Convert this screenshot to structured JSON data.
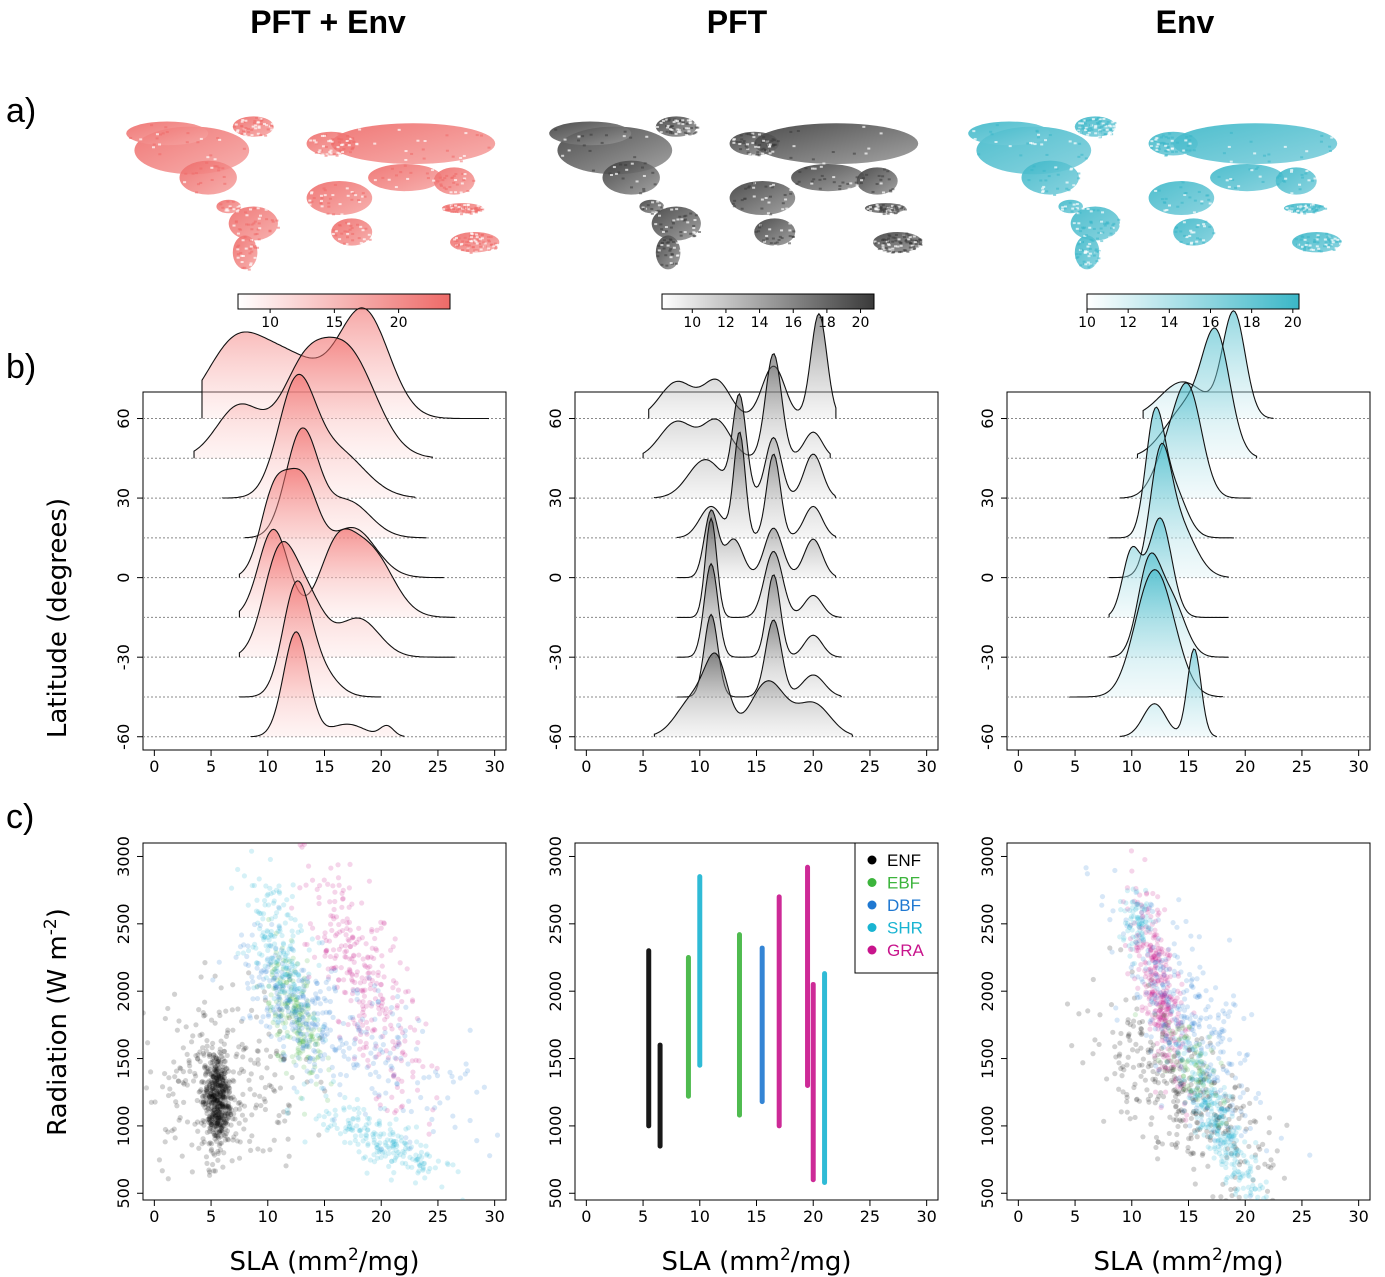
{
  "columns": [
    {
      "title": "PFT + Env",
      "color": "#f0605e",
      "light": "#fde2e1",
      "mapBase": "#f6a8a6",
      "mapDark": "#ee6a68"
    },
    {
      "title": "PFT",
      "color": "#444444",
      "light": "#e4e4e4",
      "mapBase": "#9a9a9a",
      "mapDark": "#3a3a3a"
    },
    {
      "title": "Env",
      "color": "#3bb7c8",
      "light": "#dcf1f4",
      "mapBase": "#7fcfdc",
      "mapDark": "#3bb7c8"
    }
  ],
  "panel_labels": [
    "a)",
    "b)",
    "c)"
  ],
  "chart_data": [
    {
      "type": "heatmap",
      "panel": "a",
      "column": "PFT + Env",
      "description_ticks": [
        "10",
        "15",
        "20"
      ],
      "colorbar_range": [
        7.5,
        24
      ]
    },
    {
      "type": "heatmap",
      "panel": "a",
      "column": "PFT",
      "description_ticks": [
        "10",
        "12",
        "14",
        "16",
        "18",
        "20"
      ],
      "colorbar_range": [
        8.2,
        20.8
      ]
    },
    {
      "type": "heatmap",
      "panel": "a",
      "column": "Env",
      "description_ticks": [
        "10",
        "12",
        "14",
        "16",
        "18",
        "20"
      ],
      "colorbar_range": [
        10,
        20.3
      ]
    },
    {
      "type": "area",
      "panel": "b",
      "ylabel": "Latitude (degrees)",
      "xlabel": "",
      "xlim": [
        -1,
        31
      ],
      "ylim": [
        -65,
        70
      ],
      "xticks": [
        "0",
        "5",
        "10",
        "15",
        "20",
        "25",
        "30"
      ],
      "yticks": [
        "-60",
        "-30",
        "0",
        "30",
        "60"
      ],
      "baselines": [
        60,
        45,
        30,
        15,
        0,
        -15,
        -30,
        -45,
        -60
      ],
      "ridges": {
        "PFT + Env": [
          {
            "lat": 60,
            "peaks": [
              [
                7,
                0.65,
                2.5
              ],
              [
                12,
                0.55,
                3
              ],
              [
                18.5,
                1,
                2.2
              ]
            ],
            "xmin": 4.2,
            "xmax": 29.5
          },
          {
            "lat": 45,
            "peaks": [
              [
                7.5,
                0.5,
                2
              ],
              [
                13,
                0.7,
                2
              ],
              [
                17,
                1,
                2.5
              ]
            ],
            "xmin": 3.5,
            "xmax": 24.5
          },
          {
            "lat": 30,
            "peaks": [
              [
                12.5,
                1,
                1.6
              ],
              [
                16,
                0.45,
                2.5
              ]
            ],
            "xmin": 6,
            "xmax": 23
          },
          {
            "lat": 15,
            "peaks": [
              [
                13,
                1,
                1.4
              ],
              [
                17,
                0.35,
                2
              ]
            ],
            "xmin": 8,
            "xmax": 24
          },
          {
            "lat": 0,
            "peaks": [
              [
                10.5,
                0.7,
                1.2
              ],
              [
                13,
                0.85,
                1.4
              ],
              [
                17.5,
                0.45,
                2
              ]
            ],
            "xmin": 7.5,
            "xmax": 25.5
          },
          {
            "lat": -15,
            "peaks": [
              [
                10.5,
                0.8,
                1.3
              ],
              [
                16,
                0.55,
                1.5
              ],
              [
                19,
                0.6,
                2
              ]
            ],
            "xmin": 7.5,
            "xmax": 26.5
          },
          {
            "lat": -30,
            "peaks": [
              [
                11,
                0.9,
                1.4
              ],
              [
                13.5,
                0.5,
                1.5
              ],
              [
                18,
                0.35,
                1.8
              ]
            ],
            "xmin": 7.5,
            "xmax": 26.5
          },
          {
            "lat": -45,
            "peaks": [
              [
                12.5,
                1,
                1.2
              ],
              [
                14.5,
                0.25,
                1.5
              ]
            ],
            "xmin": 7.5,
            "xmax": 20
          },
          {
            "lat": -60,
            "peaks": [
              [
                12.5,
                1,
                1.1
              ],
              [
                17,
                0.12,
                1.5
              ],
              [
                20.5,
                0.1,
                0.6
              ]
            ],
            "xmin": 8.5,
            "xmax": 22
          }
        ],
        "PFT": [
          {
            "lat": 60,
            "peaks": [
              [
                8,
                0.35,
                1.5
              ],
              [
                11.5,
                0.35,
                1.2
              ],
              [
                16.5,
                0.5,
                1
              ],
              [
                20.5,
                1,
                0.7
              ]
            ],
            "xmin": 5.5,
            "xmax": 22
          },
          {
            "lat": 45,
            "peaks": [
              [
                8,
                0.35,
                1.5
              ],
              [
                11.5,
                0.35,
                1.2
              ],
              [
                16.5,
                1,
                0.7
              ],
              [
                20,
                0.25,
                0.8
              ]
            ],
            "xmin": 5,
            "xmax": 21.5
          },
          {
            "lat": 30,
            "peaks": [
              [
                10.5,
                0.35,
                1.5
              ],
              [
                13.5,
                0.9,
                0.6
              ],
              [
                16.5,
                0.55,
                0.7
              ],
              [
                20,
                0.4,
                0.8
              ]
            ],
            "xmin": 6,
            "xmax": 22
          },
          {
            "lat": 15,
            "peaks": [
              [
                11,
                0.3,
                1
              ],
              [
                13.5,
                1,
                0.5
              ],
              [
                16.5,
                0.8,
                0.6
              ],
              [
                20,
                0.3,
                0.8
              ]
            ],
            "xmin": 8,
            "xmax": 22
          },
          {
            "lat": 0,
            "peaks": [
              [
                11,
                0.6,
                0.6
              ],
              [
                13,
                0.35,
                0.8
              ],
              [
                16.5,
                0.45,
                0.8
              ],
              [
                20,
                0.35,
                0.8
              ]
            ],
            "xmin": 8,
            "xmax": 22
          },
          {
            "lat": -15,
            "peaks": [
              [
                11,
                0.9,
                0.5
              ],
              [
                16.5,
                0.6,
                0.8
              ],
              [
                20,
                0.2,
                0.8
              ]
            ],
            "xmin": 8,
            "xmax": 22.5
          },
          {
            "lat": -30,
            "peaks": [
              [
                11,
                0.85,
                0.6
              ],
              [
                16.5,
                0.75,
                0.6
              ],
              [
                20,
                0.2,
                0.8
              ]
            ],
            "xmin": 8,
            "xmax": 22.5
          },
          {
            "lat": -45,
            "peaks": [
              [
                11,
                0.75,
                0.6
              ],
              [
                16.5,
                0.7,
                0.7
              ],
              [
                20,
                0.2,
                1
              ]
            ],
            "xmin": 8,
            "xmax": 22.5
          },
          {
            "lat": -60,
            "peaks": [
              [
                9.5,
                0.35,
                1.5
              ],
              [
                11.5,
                0.6,
                1
              ],
              [
                16,
                0.5,
                1.5
              ],
              [
                20,
                0.3,
                1.5
              ]
            ],
            "xmin": 6,
            "xmax": 23.5
          }
        ],
        "Env": [
          {
            "lat": 60,
            "peaks": [
              [
                14.5,
                0.35,
                2
              ],
              [
                19,
                1,
                1
              ]
            ],
            "xmin": 11,
            "xmax": 22.5
          },
          {
            "lat": 45,
            "peaks": [
              [
                15,
                0.5,
                2
              ],
              [
                17.5,
                1,
                1.2
              ]
            ],
            "xmin": 10.5,
            "xmax": 21
          },
          {
            "lat": 30,
            "peaks": [
              [
                13,
                0.35,
                1.2
              ],
              [
                15,
                1,
                1.2
              ]
            ],
            "xmin": 9,
            "xmax": 20.5
          },
          {
            "lat": 15,
            "peaks": [
              [
                12,
                1,
                0.8
              ],
              [
                13.5,
                0.5,
                1.2
              ]
            ],
            "xmin": 8,
            "xmax": 19
          },
          {
            "lat": 0,
            "peaks": [
              [
                12.5,
                0.9,
                0.9
              ],
              [
                14,
                0.5,
                1.5
              ]
            ],
            "xmin": 8,
            "xmax": 18.5
          },
          {
            "lat": -15,
            "peaks": [
              [
                10,
                0.6,
                0.8
              ],
              [
                12.5,
                0.9,
                1
              ]
            ],
            "xmin": 8,
            "xmax": 18.5
          },
          {
            "lat": -30,
            "peaks": [
              [
                11.5,
                0.8,
                1
              ],
              [
                13.5,
                0.5,
                1.2
              ]
            ],
            "xmin": 8,
            "xmax": 18.5
          },
          {
            "lat": -45,
            "peaks": [
              [
                11.5,
                0.8,
                1.5
              ],
              [
                13,
                0.5,
                1.5
              ]
            ],
            "xmin": 4.5,
            "xmax": 18
          },
          {
            "lat": -60,
            "peaks": [
              [
                12,
                0.3,
                1
              ],
              [
                15.5,
                0.8,
                0.6
              ]
            ],
            "xmin": 9,
            "xmax": 17.5
          }
        ]
      }
    },
    {
      "type": "scatter",
      "panel": "c",
      "ylabel": "Radiation (W m-2)",
      "ylabel_main": "Radiation (W m",
      "ylabel_sup": "-2",
      "ylabel_end": ")",
      "xlabel_main": "SLA (mm",
      "xlabel_sup": "2",
      "xlabel_end": "/mg)",
      "xlim": [
        -1,
        31
      ],
      "ylim": [
        450,
        3100
      ],
      "xticks": [
        "0",
        "5",
        "10",
        "15",
        "20",
        "25",
        "30"
      ],
      "yticks": [
        "500",
        "1000",
        "1500",
        "2000",
        "2500",
        "3000"
      ],
      "legend": [
        {
          "label": "ENF",
          "color": "#000000"
        },
        {
          "label": "EBF",
          "color": "#3cb43c"
        },
        {
          "label": "DBF",
          "color": "#1f78d1"
        },
        {
          "label": "SHR",
          "color": "#19b4d2"
        },
        {
          "label": "GRA",
          "color": "#c8148c"
        }
      ],
      "pft_columns": [
        {
          "pft": "ENF",
          "x": 5.5,
          "y": [
            1000,
            2300
          ]
        },
        {
          "pft": "ENF",
          "x": 6.5,
          "y": [
            850,
            1600
          ]
        },
        {
          "pft": "EBF",
          "x": 9,
          "y": [
            1220,
            2250
          ]
        },
        {
          "pft": "SHR",
          "x": 10,
          "y": [
            1450,
            2850
          ]
        },
        {
          "pft": "EBF",
          "x": 13.5,
          "y": [
            1080,
            2420
          ]
        },
        {
          "pft": "DBF",
          "x": 15.5,
          "y": [
            1180,
            2320
          ]
        },
        {
          "pft": "GRA",
          "x": 17,
          "y": [
            1000,
            2700
          ]
        },
        {
          "pft": "GRA",
          "x": 19.5,
          "y": [
            1300,
            2920
          ]
        },
        {
          "pft": "GRA",
          "x": 20,
          "y": [
            600,
            2050
          ]
        },
        {
          "pft": "SHR",
          "x": 21,
          "y": [
            580,
            2130
          ]
        }
      ]
    }
  ]
}
